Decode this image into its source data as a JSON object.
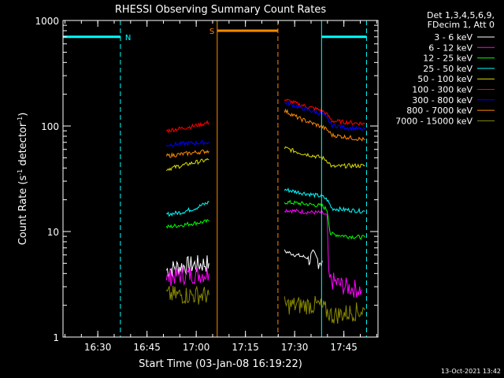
{
  "chart_data": {
    "type": "line",
    "title": "RHESSI Observing Summary Count Rates",
    "xlabel": "Start Time (03-Jan-08 16:19:22)",
    "ylabel_main": "Count Rate (s",
    "ylabel_sup1": "-1",
    "ylabel_mid": " detector",
    "ylabel_sup2": "-1",
    "ylabel_end": ")",
    "footer": "13-Oct-2021 13:42",
    "x_axis": {
      "unit": "minutes after 16:19:22",
      "range": [
        0,
        96
      ],
      "ticks": [
        {
          "label": "16:30",
          "value": 10.6
        },
        {
          "label": "16:45",
          "value": 25.6
        },
        {
          "label": "17:00",
          "value": 40.6
        },
        {
          "label": "17:15",
          "value": 55.6
        },
        {
          "label": "17:30",
          "value": 70.6
        },
        {
          "label": "17:45",
          "value": 85.6
        }
      ]
    },
    "y_axis": {
      "scale": "log",
      "range": [
        1,
        1000
      ],
      "ticks": [
        {
          "label": "1",
          "value": 1
        },
        {
          "label": "10",
          "value": 10
        },
        {
          "label": "100",
          "value": 100
        },
        {
          "label": "1000",
          "value": 1000
        }
      ]
    },
    "legend": {
      "header": [
        "Det 1,3,4,5,6,9,",
        "FDecim 1, Att 0"
      ],
      "position": "right"
    },
    "series": [
      {
        "name": "3 - 6 keV",
        "color": "#000000",
        "segments": [
          [
            [
              31.5,
              4.3
            ],
            [
              35,
              4.6
            ],
            [
              39,
              4.8
            ],
            [
              44.5,
              5.0
            ]
          ],
          [
            [
              67.5,
              6.5
            ],
            [
              71,
              6.0
            ],
            [
              75,
              5.6
            ],
            [
              79,
              5.3
            ]
          ]
        ]
      },
      {
        "name": "6 - 12 keV",
        "color": "#ff00ff",
        "segments": [
          [
            [
              31.5,
              3.6
            ],
            [
              34,
              3.8
            ],
            [
              44.5,
              4.0
            ]
          ],
          [
            [
              67.5,
              16
            ],
            [
              72,
              15.5
            ],
            [
              79,
              15
            ],
            [
              80.5,
              14
            ],
            [
              81,
              3.5
            ],
            [
              86,
              3.0
            ],
            [
              91,
              2.8
            ]
          ]
        ]
      },
      {
        "name": "12 - 25 keV",
        "color": "#00ff00",
        "segments": [
          [
            [
              31.5,
              11
            ],
            [
              36,
              11.5
            ],
            [
              40,
              12
            ],
            [
              44.5,
              12.5
            ]
          ],
          [
            [
              67.5,
              19
            ],
            [
              72,
              18.5
            ],
            [
              79,
              17.5
            ],
            [
              80.5,
              16
            ],
            [
              81.5,
              9.5
            ],
            [
              87,
              9.0
            ],
            [
              92,
              8.8
            ]
          ]
        ]
      },
      {
        "name": "25 - 50 keV",
        "color": "#00ffff",
        "segments": [
          [
            [
              31.5,
              14.5
            ],
            [
              36,
              15.2
            ],
            [
              40,
              16.5
            ],
            [
              44.5,
              19
            ]
          ],
          [
            [
              67.5,
              25
            ],
            [
              72,
              23.5
            ],
            [
              79,
              21.5
            ],
            [
              80.5,
              20
            ],
            [
              82,
              16.5
            ],
            [
              87,
              16
            ],
            [
              92,
              15.5
            ]
          ]
        ]
      },
      {
        "name": "50 - 100 keV",
        "color": "#dddd00",
        "segments": [
          [
            [
              31.5,
              39
            ],
            [
              36,
              42
            ],
            [
              40,
              45
            ],
            [
              44.5,
              48
            ]
          ],
          [
            [
              67.5,
              62
            ],
            [
              72,
              56
            ],
            [
              79,
              50
            ],
            [
              80.5,
              47
            ],
            [
              82,
              41
            ],
            [
              87,
              42
            ],
            [
              92,
              42
            ]
          ]
        ]
      },
      {
        "name": "100 - 300 keV",
        "color": "#ff0000",
        "segments": [
          [
            [
              31.5,
              90
            ],
            [
              36,
              95
            ],
            [
              40,
              100
            ],
            [
              44.5,
              108
            ]
          ],
          [
            [
              67.5,
              178
            ],
            [
              72,
              160
            ],
            [
              79,
              140
            ],
            [
              80.5,
              128
            ],
            [
              82,
              112
            ],
            [
              87,
              108
            ],
            [
              92,
              105
            ]
          ]
        ]
      },
      {
        "name": "300 - 800 keV",
        "color": "#0000ff",
        "segments": [
          [
            [
              31.5,
              66
            ],
            [
              36,
              68
            ],
            [
              40,
              69
            ],
            [
              44.5,
              70
            ]
          ],
          [
            [
              67.5,
              168
            ],
            [
              72,
              150
            ],
            [
              79,
              130
            ],
            [
              80.5,
              118
            ],
            [
              82,
              102
            ],
            [
              87,
              96
            ],
            [
              92,
              92
            ]
          ]
        ]
      },
      {
        "name": "800 - 7000 keV",
        "color": "#ff8800",
        "segments": [
          [
            [
              31.5,
              52
            ],
            [
              36,
              54
            ],
            [
              40,
              56
            ],
            [
              44.5,
              58
            ]
          ],
          [
            [
              67.5,
              140
            ],
            [
              72,
              118
            ],
            [
              79,
              98
            ],
            [
              80.5,
              92
            ],
            [
              82,
              82
            ],
            [
              87,
              78
            ],
            [
              92,
              74
            ]
          ]
        ]
      },
      {
        "name": "7000 - 15000 keV",
        "color": "#888800",
        "segments": [
          [
            [
              31.5,
              2.5
            ],
            [
              44.5,
              2.5
            ]
          ],
          [
            [
              67.5,
              2.0
            ],
            [
              78,
              2.0
            ],
            [
              82,
              1.6
            ],
            [
              92,
              1.8
            ]
          ]
        ]
      }
    ],
    "annotations": [
      {
        "label": "N",
        "color": "#00ffff",
        "bar": [
          0,
          17.5
        ],
        "level": 700,
        "dashes": [
          17.5
        ]
      },
      {
        "label": "",
        "color": "#00ffff",
        "bar": [
          78.8,
          92.5
        ],
        "level": 700,
        "dashes": [
          92.5
        ]
      },
      {
        "label": "S",
        "color": "#ff8800",
        "bar": [
          47,
          65.5
        ],
        "level": 800,
        "dashes": [
          65.5
        ]
      }
    ]
  }
}
